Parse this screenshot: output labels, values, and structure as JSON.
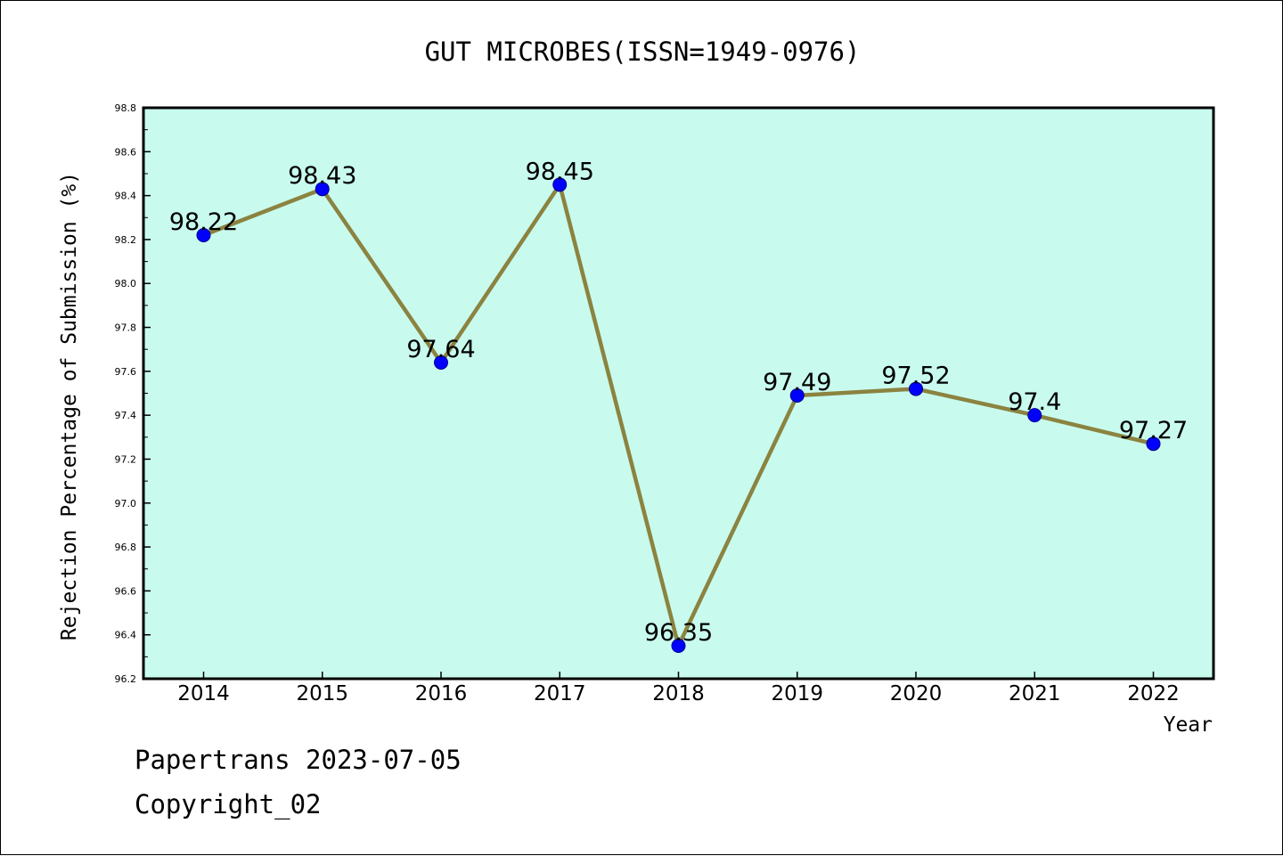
{
  "chart_data": {
    "type": "line",
    "title": "GUT MICROBES(ISSN=1949-0976)",
    "xlabel": "Year",
    "ylabel": "Rejection Percentage of Submission (%)",
    "categories": [
      "2014",
      "2015",
      "2016",
      "2017",
      "2018",
      "2019",
      "2020",
      "2021",
      "2022"
    ],
    "series": [
      {
        "values": [
          98.22,
          98.43,
          97.64,
          98.45,
          96.35,
          97.49,
          97.52,
          97.4,
          97.27
        ],
        "labels": [
          "98.22",
          "98.43",
          "97.64",
          "98.45",
          "96.35",
          "97.49",
          "97.52",
          "97.4",
          "97.27"
        ]
      }
    ],
    "ylim": [
      96.2,
      98.8
    ],
    "yticks": [
      "96.2",
      "96.4",
      "96.6",
      "96.8",
      "97.0",
      "97.2",
      "97.4",
      "97.6",
      "97.8",
      "98.0",
      "98.2",
      "98.4",
      "98.6",
      "98.8"
    ],
    "grid": false,
    "colors": {
      "plot_background": "#c8fbee",
      "line": "#8b8340",
      "marker": "#0000ff",
      "marker_edge": "#00008b"
    }
  },
  "footer": {
    "line1": "Papertrans 2023-07-05",
    "line2": "Copyright_02"
  }
}
